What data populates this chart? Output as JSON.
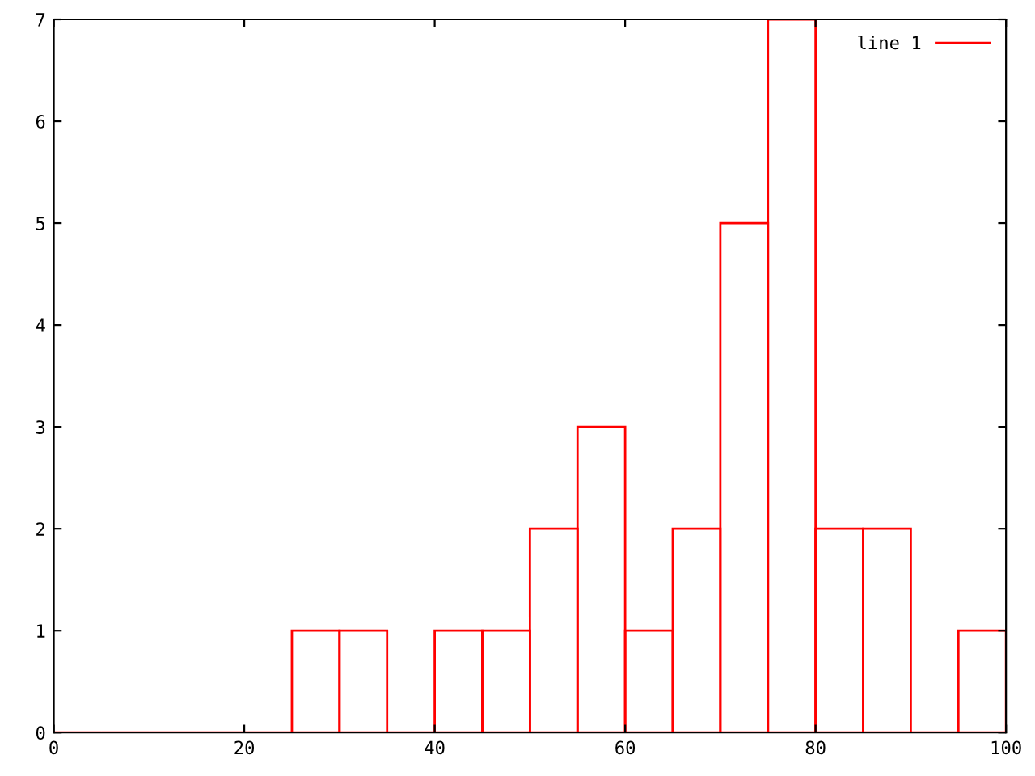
{
  "chart_data": {
    "type": "histogram",
    "bins": [
      0,
      5,
      10,
      15,
      20,
      25,
      30,
      35,
      40,
      45,
      50,
      55,
      60,
      65,
      70,
      75,
      80,
      85,
      90,
      95,
      100
    ],
    "series": [
      {
        "name": "line 1",
        "color": "#ff0000",
        "values": [
          0,
          0,
          0,
          0,
          0,
          1,
          1,
          0,
          1,
          1,
          2,
          3,
          1,
          2,
          5,
          7,
          2,
          2,
          0,
          1
        ]
      }
    ],
    "xlim": [
      0,
      100
    ],
    "xticks": [
      0,
      20,
      40,
      60,
      80,
      100
    ],
    "ylim": [
      0,
      7
    ],
    "yticks": [
      0,
      1,
      2,
      3,
      4,
      5,
      6,
      7
    ],
    "grid": false,
    "legend": "top right"
  }
}
